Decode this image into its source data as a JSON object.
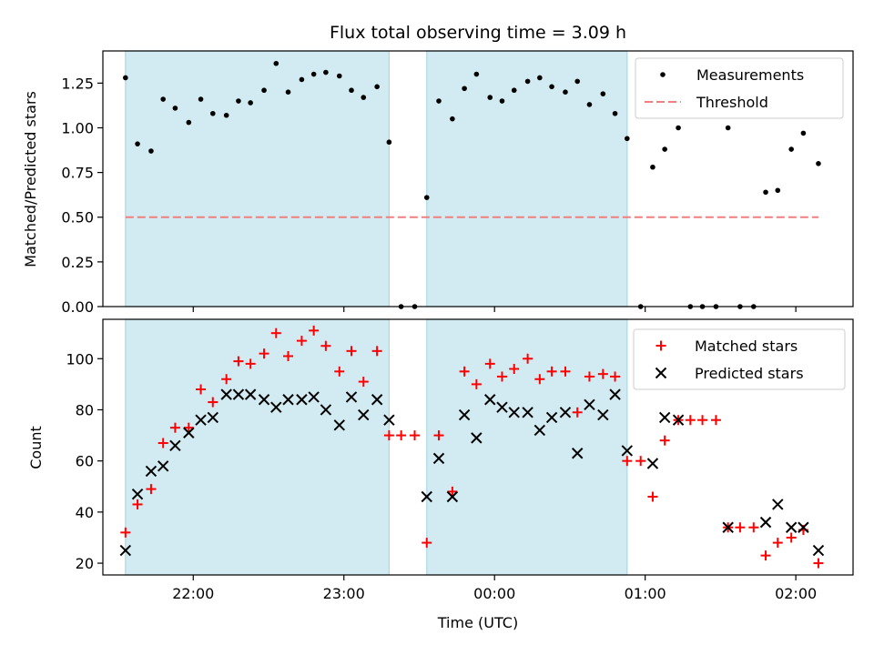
{
  "chart_data": {
    "type": "scatter",
    "title": "Flux total observing time = 3.09 h",
    "xlabel": "Time (UTC)",
    "x_unit": "hours since 21:00 UTC",
    "xlim": [
      21.4,
      26.38
    ],
    "x_ticks": [
      {
        "value": 22.0,
        "label": "22:00"
      },
      {
        "value": 23.0,
        "label": "23:00"
      },
      {
        "value": 24.0,
        "label": "00:00"
      },
      {
        "value": 25.0,
        "label": "01:00"
      },
      {
        "value": 26.0,
        "label": "02:00"
      }
    ],
    "shaded_intervals": [
      [
        21.55,
        23.3
      ],
      [
        23.55,
        24.88
      ]
    ],
    "top": {
      "ylabel": "Matched/Predicted stars",
      "ylim": [
        0,
        1.43
      ],
      "y_ticks": [
        {
          "value": 0.0,
          "label": "0.00"
        },
        {
          "value": 0.25,
          "label": "0.25"
        },
        {
          "value": 0.5,
          "label": "0.50"
        },
        {
          "value": 0.75,
          "label": "0.75"
        },
        {
          "value": 1.0,
          "label": "1.00"
        },
        {
          "value": 1.25,
          "label": "1.25"
        }
      ],
      "threshold": {
        "name": "Threshold",
        "value": 0.5,
        "x_range": [
          21.55,
          26.15
        ],
        "color": "#f08080"
      },
      "legend": [
        {
          "name": "Measurements",
          "marker": "dot"
        },
        {
          "name": "Threshold",
          "marker": "dash"
        }
      ],
      "measurements": [
        [
          21.55,
          1.28
        ],
        [
          21.63,
          0.91
        ],
        [
          21.72,
          0.87
        ],
        [
          21.8,
          1.16
        ],
        [
          21.88,
          1.11
        ],
        [
          21.97,
          1.03
        ],
        [
          22.05,
          1.16
        ],
        [
          22.13,
          1.08
        ],
        [
          22.22,
          1.07
        ],
        [
          22.3,
          1.15
        ],
        [
          22.38,
          1.14
        ],
        [
          22.47,
          1.21
        ],
        [
          22.55,
          1.36
        ],
        [
          22.63,
          1.2
        ],
        [
          22.72,
          1.27
        ],
        [
          22.8,
          1.3
        ],
        [
          22.88,
          1.31
        ],
        [
          22.97,
          1.29
        ],
        [
          23.05,
          1.21
        ],
        [
          23.13,
          1.17
        ],
        [
          23.22,
          1.23
        ],
        [
          23.3,
          0.92
        ],
        [
          23.38,
          0.0
        ],
        [
          23.47,
          0.0
        ],
        [
          23.55,
          0.61
        ],
        [
          23.63,
          1.15
        ],
        [
          23.72,
          1.05
        ],
        [
          23.8,
          1.22
        ],
        [
          23.88,
          1.3
        ],
        [
          23.97,
          1.17
        ],
        [
          24.05,
          1.15
        ],
        [
          24.13,
          1.21
        ],
        [
          24.22,
          1.26
        ],
        [
          24.3,
          1.28
        ],
        [
          24.38,
          1.23
        ],
        [
          24.47,
          1.2
        ],
        [
          24.55,
          1.26
        ],
        [
          24.63,
          1.13
        ],
        [
          24.72,
          1.19
        ],
        [
          24.8,
          1.08
        ],
        [
          24.88,
          0.94
        ],
        [
          24.97,
          0.0
        ],
        [
          25.05,
          0.78
        ],
        [
          25.13,
          0.88
        ],
        [
          25.22,
          1.0
        ],
        [
          25.3,
          0.0
        ],
        [
          25.38,
          0.0
        ],
        [
          25.47,
          0.0
        ],
        [
          25.55,
          1.0
        ],
        [
          25.63,
          0.0
        ],
        [
          25.72,
          0.0
        ],
        [
          25.8,
          0.64
        ],
        [
          25.88,
          0.65
        ],
        [
          25.97,
          0.88
        ],
        [
          26.05,
          0.97
        ],
        [
          26.15,
          0.8
        ]
      ]
    },
    "bottom": {
      "ylabel": "Count",
      "ylim": [
        15.4,
        115.4
      ],
      "y_ticks": [
        {
          "value": 20,
          "label": "20"
        },
        {
          "value": 40,
          "label": "40"
        },
        {
          "value": 60,
          "label": "60"
        },
        {
          "value": 80,
          "label": "80"
        },
        {
          "value": 100,
          "label": "100"
        }
      ],
      "legend": [
        {
          "name": "Matched stars",
          "marker": "plus"
        },
        {
          "name": "Predicted stars",
          "marker": "x"
        }
      ],
      "matched": [
        [
          21.55,
          32
        ],
        [
          21.63,
          43
        ],
        [
          21.72,
          49
        ],
        [
          21.8,
          67
        ],
        [
          21.88,
          73
        ],
        [
          21.97,
          73
        ],
        [
          22.05,
          88
        ],
        [
          22.13,
          83
        ],
        [
          22.22,
          92
        ],
        [
          22.3,
          99
        ],
        [
          22.38,
          98
        ],
        [
          22.47,
          102
        ],
        [
          22.55,
          110
        ],
        [
          22.63,
          101
        ],
        [
          22.72,
          107
        ],
        [
          22.8,
          111
        ],
        [
          22.88,
          105
        ],
        [
          22.97,
          95
        ],
        [
          23.05,
          103
        ],
        [
          23.13,
          91
        ],
        [
          23.22,
          103
        ],
        [
          23.3,
          70
        ],
        [
          23.38,
          70
        ],
        [
          23.47,
          70
        ],
        [
          23.55,
          28
        ],
        [
          23.63,
          70
        ],
        [
          23.72,
          48
        ],
        [
          23.8,
          95
        ],
        [
          23.88,
          90
        ],
        [
          23.97,
          98
        ],
        [
          24.05,
          93
        ],
        [
          24.13,
          96
        ],
        [
          24.22,
          100
        ],
        [
          24.3,
          92
        ],
        [
          24.38,
          95
        ],
        [
          24.47,
          95
        ],
        [
          24.55,
          79
        ],
        [
          24.63,
          93
        ],
        [
          24.72,
          94
        ],
        [
          24.8,
          93
        ],
        [
          24.88,
          60
        ],
        [
          24.97,
          60
        ],
        [
          25.05,
          46
        ],
        [
          25.13,
          68
        ],
        [
          25.22,
          76
        ],
        [
          25.3,
          76
        ],
        [
          25.38,
          76
        ],
        [
          25.47,
          76
        ],
        [
          25.55,
          34
        ],
        [
          25.63,
          34
        ],
        [
          25.72,
          34
        ],
        [
          25.8,
          23
        ],
        [
          25.88,
          28
        ],
        [
          25.97,
          30
        ],
        [
          26.05,
          33
        ],
        [
          26.15,
          20
        ]
      ],
      "predicted": [
        [
          21.55,
          25
        ],
        [
          21.63,
          47
        ],
        [
          21.72,
          56
        ],
        [
          21.8,
          58
        ],
        [
          21.88,
          66
        ],
        [
          21.97,
          71
        ],
        [
          22.05,
          76
        ],
        [
          22.13,
          77
        ],
        [
          22.22,
          86
        ],
        [
          22.3,
          86
        ],
        [
          22.38,
          86
        ],
        [
          22.47,
          84
        ],
        [
          22.55,
          81
        ],
        [
          22.63,
          84
        ],
        [
          22.72,
          84
        ],
        [
          22.8,
          85
        ],
        [
          22.88,
          80
        ],
        [
          22.97,
          74
        ],
        [
          23.05,
          85
        ],
        [
          23.13,
          78
        ],
        [
          23.22,
          84
        ],
        [
          23.3,
          76
        ],
        [
          23.55,
          46
        ],
        [
          23.63,
          61
        ],
        [
          23.72,
          46
        ],
        [
          23.8,
          78
        ],
        [
          23.88,
          69
        ],
        [
          23.97,
          84
        ],
        [
          24.05,
          81
        ],
        [
          24.13,
          79
        ],
        [
          24.22,
          79
        ],
        [
          24.3,
          72
        ],
        [
          24.38,
          77
        ],
        [
          24.47,
          79
        ],
        [
          24.55,
          63
        ],
        [
          24.63,
          82
        ],
        [
          24.72,
          78
        ],
        [
          24.8,
          86
        ],
        [
          24.88,
          64
        ],
        [
          25.05,
          59
        ],
        [
          25.13,
          77
        ],
        [
          25.22,
          76
        ],
        [
          25.55,
          34
        ],
        [
          25.8,
          36
        ],
        [
          25.88,
          43
        ],
        [
          25.97,
          34
        ],
        [
          26.05,
          34
        ],
        [
          26.15,
          25
        ]
      ]
    },
    "colors": {
      "shade": "#add8e6",
      "measurements": "#000000",
      "matched": "#ff0000",
      "predicted": "#000000"
    }
  }
}
